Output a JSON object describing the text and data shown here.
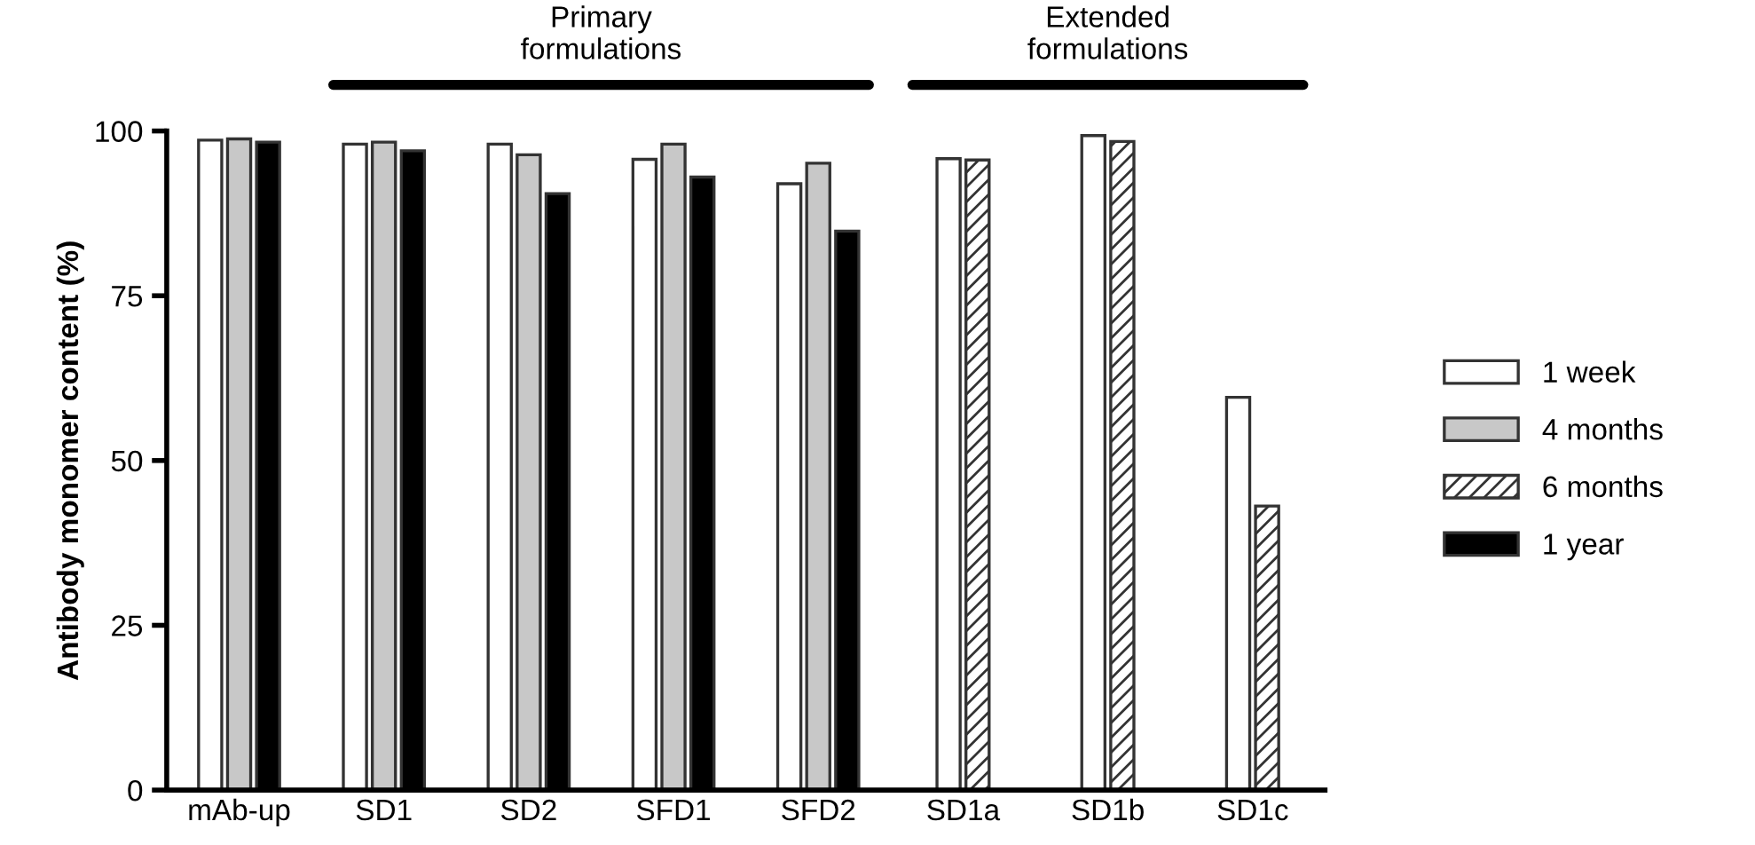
{
  "chart_data": {
    "type": "bar",
    "ylabel": "Antibody monomer content (%)",
    "categories": [
      "mAb-up",
      "SD1",
      "SD2",
      "SFD1",
      "SFD2",
      "SD1a",
      "SD1b",
      "SD1c"
    ],
    "series": [
      {
        "name": "1 week",
        "color": "#ffffff",
        "values": [
          98.6,
          98.0,
          98.0,
          95.7,
          92.0,
          95.8,
          99.3,
          59.6
        ]
      },
      {
        "name": "4 months",
        "color": "#c8c8c8",
        "values": [
          98.8,
          98.3,
          96.4,
          98.0,
          95.1,
          null,
          null,
          null
        ]
      },
      {
        "name": "6 months",
        "color": "#333333",
        "values": [
          null,
          null,
          null,
          null,
          null,
          95.6,
          98.4,
          43.1
        ]
      },
      {
        "name": "1 year",
        "color": "#000000",
        "values": [
          98.3,
          97.0,
          90.5,
          93.0,
          84.8,
          null,
          null,
          null
        ]
      }
    ],
    "annotations": [
      "Primary\nformulations",
      "Extended\nformulations"
    ],
    "ylim": [
      0,
      100
    ],
    "yticks": [
      0,
      25,
      50,
      75,
      100
    ],
    "grid": false,
    "legend": "right"
  }
}
